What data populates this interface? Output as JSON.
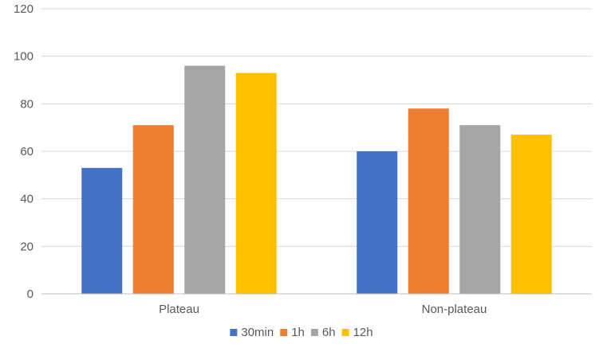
{
  "chart_data": {
    "type": "bar",
    "title": "",
    "xlabel": "",
    "ylabel": "",
    "categories": [
      "Plateau",
      "Non-plateau"
    ],
    "series": [
      {
        "name": "30min",
        "color": "#4472c4",
        "values": [
          53,
          60
        ]
      },
      {
        "name": "1h",
        "color": "#ed7d31",
        "values": [
          71,
          78
        ]
      },
      {
        "name": "6h",
        "color": "#a5a5a5",
        "values": [
          96,
          71
        ]
      },
      {
        "name": "12h",
        "color": "#ffc000",
        "values": [
          93,
          67
        ]
      }
    ],
    "ylim": [
      0,
      120
    ],
    "yticks": [
      0,
      20,
      40,
      60,
      80,
      100,
      120
    ],
    "grid": true,
    "legend_position": "bottom"
  }
}
